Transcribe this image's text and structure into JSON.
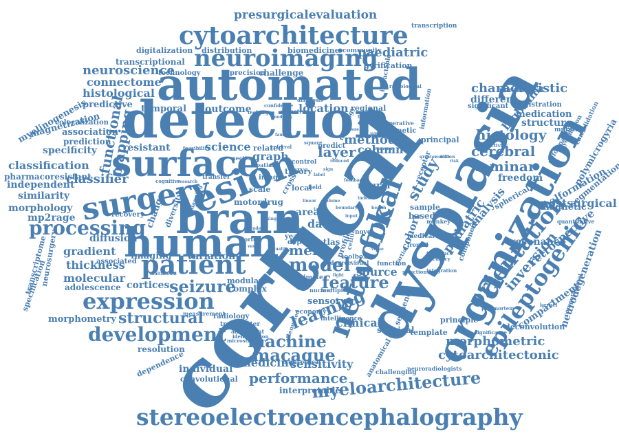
{
  "colors": {
    "word": "#4a7fb2",
    "background": "#ffffff"
  },
  "words": [
    "cortical",
    "dysplasia",
    "detection",
    "automated",
    "brain",
    "human",
    "lesion",
    "organization",
    "surface",
    "surgery",
    "network",
    "focal",
    "stereoelectroencephalography",
    "cytoarchitecture",
    "neuroimaging",
    "patient",
    "expression",
    "development",
    "processing",
    "epileptogenic",
    "orientation",
    "myeloarchitecture",
    "machine",
    "macaque",
    "performance",
    "seizure",
    "structural",
    "model",
    "learning",
    "feature",
    "morphometric",
    "cytoarchitectonic",
    "presurgicalevaluation",
    "characteristic",
    "histology",
    "laminar",
    "cerebral",
    "inversion",
    "retrospective",
    "postsurgical",
    "compartment",
    "neurodegeneration",
    "malformation",
    "polymicrogyria",
    "segmentation",
    "resonance",
    "magnetic",
    "freedom",
    "analysis",
    "pediatric",
    "study",
    "cohort",
    "bigbrain",
    "structure",
    "medication",
    "registration",
    "hierarchical",
    "different",
    "significant",
    "paediatric",
    "community",
    "transcription",
    "biomedicine",
    "gyrification",
    "digitalization",
    "distribution",
    "neuroscience",
    "connectome",
    "histological",
    "transcriptional",
    "technology",
    "precision",
    "challenge",
    "myelinogenesis",
    "magnetization",
    "colocalization",
    "association",
    "prediction",
    "specificity",
    "classification",
    "pharmacoresistant",
    "independent",
    "similarity",
    "morphology",
    "mp2rage",
    "diffusion",
    "transcriptome",
    "neurosurgery",
    "specification",
    "adolescence",
    "morphometry",
    "gradient",
    "thickness",
    "molecular",
    "classifier",
    "mapping",
    "functional",
    "resistant",
    "predictive",
    "temporal",
    "outcome",
    "location",
    "regional",
    "method",
    "column",
    "layer",
    "graph",
    "science",
    "related",
    "change",
    "imaging",
    "variation",
    "cortices",
    "meld",
    "surgical",
    "sequence",
    "template",
    "principle",
    "deconvolution",
    "quantitative",
    "spherical",
    "neural",
    "radiology",
    "clinical",
    "data",
    "area",
    "sensory",
    "source",
    "sensitivity",
    "medicine",
    "individual",
    "convolutional",
    "resolution",
    "dependence",
    "interpretable",
    "anatomical",
    "challenging",
    "neuroradiologists",
    "economy",
    "intelligence",
    "atlas",
    "profile",
    "cellular",
    "depth",
    "modular",
    "complex",
    "adolescent",
    "transmitter",
    "microstructure",
    "identification",
    "attenuated",
    "toolbox",
    "visual",
    "primate",
    "nuclear",
    "multiple",
    "function",
    "partial",
    "selection",
    "integration",
    "introduce",
    "accuracy",
    "frontal",
    "medical",
    "monkey",
    "sample",
    "based",
    "component",
    "receptor",
    "principal",
    "genetic",
    "operative",
    "unifying",
    "connectivity",
    "workflow",
    "myelination",
    "mutation",
    "consolidation",
    "deformation",
    "postmortem",
    "significance",
    "computational",
    "kernel",
    "novel",
    "degree",
    "inter",
    "year",
    "local",
    "cross",
    "scale",
    "motor",
    "drug",
    "recovery",
    "associated",
    "diversity",
    "planning",
    "transfer",
    "control",
    "theory",
    "curve",
    "field",
    "spatial",
    "section",
    "objective",
    "intractable",
    "radiological",
    "information",
    "diagnosis",
    "feasibility",
    "cognitive",
    "research",
    "predict",
    "referral",
    "square",
    "confidence",
    "technique",
    "neurology",
    "fingerprint",
    "modality",
    "tissue",
    "family",
    "reduced",
    "image",
    "measurement",
    "cortex",
    "vessel",
    "quality",
    "intracortical",
    "multimodal",
    "linear",
    "volume",
    "boundary",
    "input",
    "target",
    "greater",
    "response",
    "sign",
    "label",
    "feedback",
    "index",
    "health",
    "grade",
    "single",
    "value",
    "light",
    "white",
    "lobe",
    "risk"
  ]
}
